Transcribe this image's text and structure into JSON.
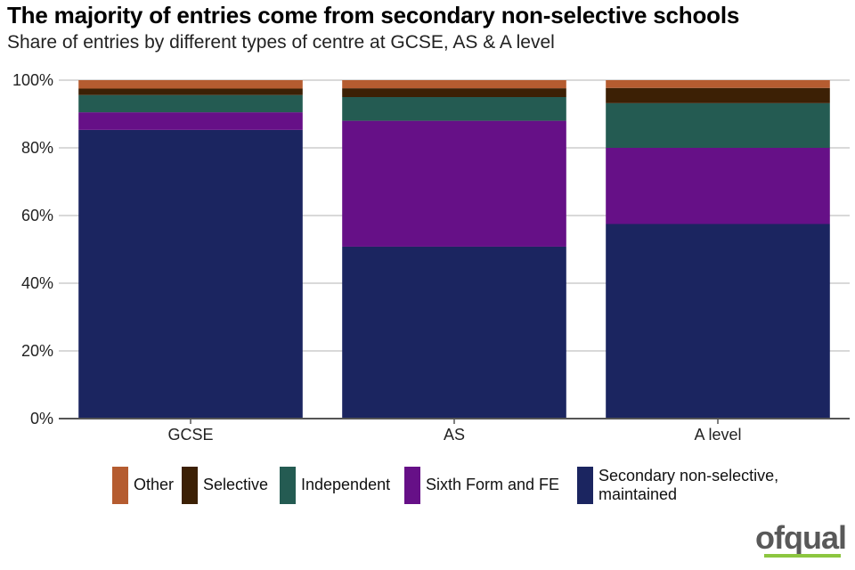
{
  "chart_data": {
    "type": "bar",
    "stacked": true,
    "title": "The majority of entries come from secondary non-selective schools",
    "subtitle": "Share of entries by different types of centre at GCSE, AS & A level",
    "categories": [
      "GCSE",
      "AS",
      "A level"
    ],
    "series": [
      {
        "name": "Secondary non-selective, maintained",
        "color": "#1b2560",
        "values": [
          85.3,
          50.8,
          57.5
        ]
      },
      {
        "name": "Sixth Form and FE",
        "color": "#661087",
        "values": [
          5.2,
          37.2,
          22.5
        ]
      },
      {
        "name": "Independent",
        "color": "#245b52",
        "values": [
          5.1,
          7.0,
          13.2
        ]
      },
      {
        "name": "Selective",
        "color": "#3c2005",
        "values": [
          1.9,
          2.6,
          4.5
        ]
      },
      {
        "name": "Other",
        "color": "#b55c30",
        "values": [
          2.5,
          2.4,
          2.3
        ]
      }
    ],
    "legend_order": [
      "Other",
      "Selective",
      "Independent",
      "Sixth Form and FE",
      "Secondary non-selective, maintained"
    ],
    "ylim": [
      0,
      100
    ],
    "yticks": [
      "0%",
      "20%",
      "40%",
      "60%",
      "80%",
      "100%"
    ],
    "xlabel": "",
    "ylabel": "",
    "grid": true,
    "legend_position": "bottom"
  },
  "branding": {
    "logo_text": "ofqual",
    "logo_color": "#595959",
    "logo_accent": "#8cc63f"
  }
}
